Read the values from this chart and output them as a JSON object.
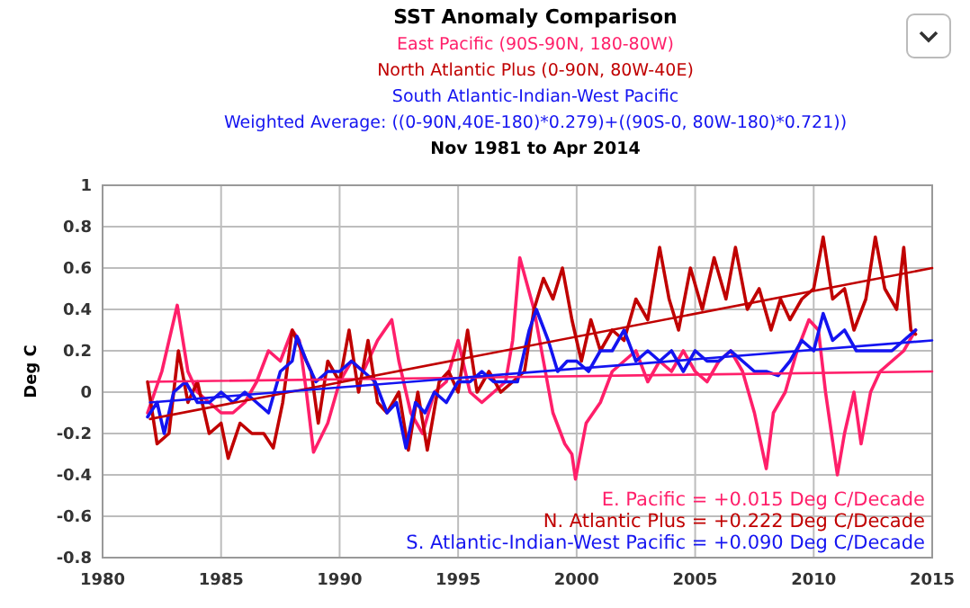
{
  "chart_data": {
    "type": "line",
    "title": "SST Anomaly Comparison",
    "subtitle": "Nov 1981 to Apr 2014",
    "ylabel": "Deg C",
    "xlim": [
      1980,
      2015
    ],
    "xticks": [
      1980,
      1985,
      1990,
      1995,
      2000,
      2005,
      2010,
      2015
    ],
    "ylim": [
      -0.8,
      1
    ],
    "yticks": [
      -0.8,
      -0.6,
      -0.4,
      -0.2,
      0,
      0.2,
      0.4,
      0.6,
      0.8,
      1
    ],
    "grid": true,
    "legend": "top",
    "marker": "none",
    "line_style": "solid",
    "annotations": [
      "E. Pacific = +0.015 Deg C/Decade",
      "N. Atlantic Plus = +0.222 Deg C/Decade",
      "S. Atlantic-Indian-West Pacific = +0.090 Deg C/Decade"
    ],
    "series": [
      {
        "name": "East Pacific (90S-90N, 180-80W)",
        "color": "#ff1f6a",
        "x": [
          1981.9,
          1982.5,
          1983.15,
          1983.6,
          1984,
          1984.5,
          1985,
          1985.5,
          1986,
          1986.5,
          1987,
          1987.5,
          1988,
          1988.3,
          1988.6,
          1988.9,
          1989.5,
          1990,
          1990.5,
          1991,
          1991.6,
          1992.2,
          1992.5,
          1993,
          1993.5,
          1994,
          1994.5,
          1995,
          1995.5,
          1996,
          1996.5,
          1997,
          1997.3,
          1997.6,
          1998.2,
          1998.6,
          1999,
          1999.5,
          1999.8,
          1999.95,
          2000.4,
          2001,
          2001.5,
          2002,
          2002.5,
          2003,
          2003.5,
          2004,
          2004.5,
          2005,
          2005.5,
          2006,
          2006.5,
          2007,
          2007.5,
          2008,
          2008.3,
          2008.8,
          2009.3,
          2009.8,
          2010.2,
          2010.5,
          2011,
          2011.3,
          2011.7,
          2012,
          2012.4,
          2012.8,
          2013.3,
          2013.8,
          2014.3
        ],
        "values": [
          -0.1,
          0.1,
          0.42,
          0.1,
          0,
          -0.05,
          -0.1,
          -0.1,
          -0.05,
          0.05,
          0.2,
          0.15,
          0.3,
          0.25,
          0,
          -0.29,
          -0.15,
          0.05,
          0.15,
          0.1,
          0.25,
          0.35,
          0.15,
          -0.1,
          -0.2,
          0,
          0.05,
          0.25,
          0,
          -0.05,
          0,
          0.05,
          0.25,
          0.65,
          0.4,
          0.15,
          -0.1,
          -0.25,
          -0.3,
          -0.42,
          -0.15,
          -0.05,
          0.1,
          0.15,
          0.2,
          0.05,
          0.15,
          0.1,
          0.2,
          0.1,
          0.05,
          0.15,
          0.2,
          0.1,
          -0.1,
          -0.37,
          -0.1,
          0,
          0.2,
          0.35,
          0.3,
          0,
          -0.4,
          -0.2,
          0,
          -0.25,
          0,
          0.1,
          0.15,
          0.2,
          0.3
        ]
      },
      {
        "name": "North Atlantic Plus (0-90N, 80W-40E)",
        "color": "#c00000",
        "x": [
          1981.9,
          1982.3,
          1982.8,
          1983.2,
          1983.6,
          1984,
          1984.5,
          1985,
          1985.3,
          1985.8,
          1986.3,
          1986.8,
          1987.2,
          1987.6,
          1988,
          1988.4,
          1988.8,
          1989.1,
          1989.5,
          1990,
          1990.4,
          1990.8,
          1991.2,
          1991.6,
          1992,
          1992.5,
          1992.9,
          1993.3,
          1993.7,
          1994.2,
          1994.6,
          1995,
          1995.4,
          1995.8,
          1996.3,
          1996.8,
          1997.3,
          1997.8,
          1998.2,
          1998.6,
          1999,
          1999.4,
          1999.8,
          2000.2,
          2000.6,
          2001,
          2001.5,
          2002,
          2002.5,
          2003,
          2003.5,
          2003.9,
          2004.3,
          2004.8,
          2005.3,
          2005.8,
          2006.3,
          2006.7,
          2007.2,
          2007.7,
          2008.2,
          2008.6,
          2009,
          2009.5,
          2010,
          2010.4,
          2010.8,
          2011.3,
          2011.7,
          2012.2,
          2012.6,
          2013,
          2013.5,
          2013.8,
          2014.1,
          2014.3
        ],
        "values": [
          0.05,
          -0.25,
          -0.2,
          0.2,
          -0.05,
          0.05,
          -0.2,
          -0.15,
          -0.32,
          -0.15,
          -0.2,
          -0.2,
          -0.27,
          -0.05,
          0.3,
          0.2,
          0.1,
          -0.15,
          0.15,
          0.05,
          0.3,
          0,
          0.25,
          -0.05,
          -0.1,
          0,
          -0.28,
          0,
          -0.28,
          0.05,
          0.1,
          0,
          0.3,
          0,
          0.1,
          0,
          0.05,
          0.1,
          0.4,
          0.55,
          0.45,
          0.6,
          0.35,
          0.15,
          0.35,
          0.2,
          0.3,
          0.25,
          0.45,
          0.35,
          0.7,
          0.45,
          0.3,
          0.6,
          0.4,
          0.65,
          0.45,
          0.7,
          0.4,
          0.5,
          0.3,
          0.45,
          0.35,
          0.45,
          0.5,
          0.75,
          0.45,
          0.5,
          0.3,
          0.45,
          0.75,
          0.5,
          0.4,
          0.7,
          0.3,
          0.28
        ]
      },
      {
        "name": "South Atlantic-Indian-West Pacific\nWeighted Average: ((0-90N,40E-180)*0.279)+((90S-0, 80W-180)*0.721))",
        "color": "#1414f0",
        "x": [
          1981.9,
          1982.3,
          1982.6,
          1983,
          1983.5,
          1984,
          1984.5,
          1985,
          1985.5,
          1986,
          1986.5,
          1987,
          1987.5,
          1988,
          1988.2,
          1988.6,
          1989,
          1989.5,
          1990,
          1990.5,
          1991,
          1991.5,
          1992,
          1992.4,
          1992.8,
          1993.2,
          1993.6,
          1994,
          1994.5,
          1995,
          1995.5,
          1996,
          1996.5,
          1997,
          1997.5,
          1998,
          1998.3,
          1998.8,
          1999.2,
          1999.6,
          2000,
          2000.5,
          2001,
          2001.5,
          2002,
          2002.5,
          2003,
          2003.5,
          2004,
          2004.5,
          2005,
          2005.5,
          2006,
          2006.5,
          2007,
          2007.5,
          2008,
          2008.5,
          2009,
          2009.5,
          2010,
          2010.4,
          2010.8,
          2011.3,
          2011.8,
          2012.3,
          2012.8,
          2013.3,
          2013.8,
          2014.3
        ],
        "values": [
          -0.12,
          -0.05,
          -0.2,
          0,
          0.05,
          -0.05,
          -0.05,
          0,
          -0.05,
          0,
          -0.05,
          -0.1,
          0.1,
          0.15,
          0.27,
          0.15,
          0.05,
          0.1,
          0.1,
          0.15,
          0.1,
          0.05,
          -0.1,
          -0.05,
          -0.27,
          -0.05,
          -0.1,
          0,
          -0.05,
          0.05,
          0.05,
          0.1,
          0.05,
          0.05,
          0.05,
          0.3,
          0.4,
          0.25,
          0.1,
          0.15,
          0.15,
          0.1,
          0.2,
          0.2,
          0.3,
          0.15,
          0.2,
          0.15,
          0.2,
          0.1,
          0.2,
          0.15,
          0.15,
          0.2,
          0.15,
          0.1,
          0.1,
          0.08,
          0.15,
          0.25,
          0.2,
          0.38,
          0.25,
          0.3,
          0.2,
          0.2,
          0.2,
          0.2,
          0.25,
          0.3
        ]
      },
      {
        "type": "line",
        "color": "#ff1f6a",
        "x": [
          1982,
          2015
        ],
        "values": [
          0.05,
          0.1
        ]
      },
      {
        "type": "line",
        "color": "#c00000",
        "x": [
          1982,
          2015
        ],
        "values": [
          -0.13,
          0.6
        ]
      },
      {
        "type": "line",
        "color": "#1414f0",
        "x": [
          1982,
          2015
        ],
        "values": [
          -0.05,
          0.25
        ]
      }
    ]
  }
}
